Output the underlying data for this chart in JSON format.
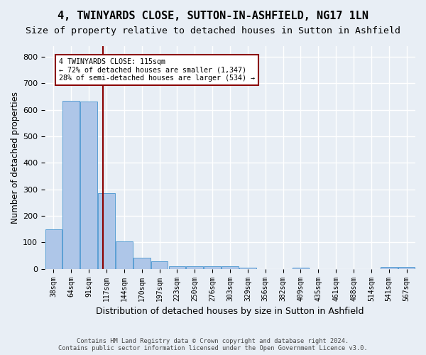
{
  "title1": "4, TWINYARDS CLOSE, SUTTON-IN-ASHFIELD, NG17 1LN",
  "title2": "Size of property relative to detached houses in Sutton in Ashfield",
  "xlabel": "Distribution of detached houses by size in Sutton in Ashfield",
  "ylabel": "Number of detached properties",
  "footer": "Contains HM Land Registry data © Crown copyright and database right 2024.\nContains public sector information licensed under the Open Government Licence v3.0.",
  "bar_labels": [
    "38sqm",
    "64sqm",
    "91sqm",
    "117sqm",
    "144sqm",
    "170sqm",
    "197sqm",
    "223sqm",
    "250sqm",
    "276sqm",
    "303sqm",
    "329sqm",
    "356sqm",
    "382sqm",
    "409sqm",
    "435sqm",
    "461sqm",
    "488sqm",
    "514sqm",
    "541sqm",
    "567sqm"
  ],
  "bar_values": [
    150,
    635,
    630,
    285,
    103,
    42,
    28,
    10,
    10,
    10,
    10,
    5,
    0,
    0,
    5,
    0,
    0,
    0,
    0,
    8,
    8
  ],
  "bar_color": "#aec6e8",
  "bar_edge_color": "#5a9fd4",
  "vline_x": 2.78,
  "vline_color": "#8b0000",
  "annotation_line1": "4 TWINYARDS CLOSE: 115sqm",
  "annotation_line2": "← 72% of detached houses are smaller (1,347)",
  "annotation_line3": "28% of semi-detached houses are larger (534) →",
  "annotation_box_color": "#ffffff",
  "annotation_box_edge": "#8b0000",
  "yticks": [
    0,
    100,
    200,
    300,
    400,
    500,
    600,
    700,
    800
  ],
  "ylim": [
    0,
    840
  ],
  "bg_color": "#e8eef5",
  "grid_color": "#ffffff",
  "title1_fontsize": 11,
  "title2_fontsize": 9.5,
  "xlabel_fontsize": 9,
  "ylabel_fontsize": 8.5
}
